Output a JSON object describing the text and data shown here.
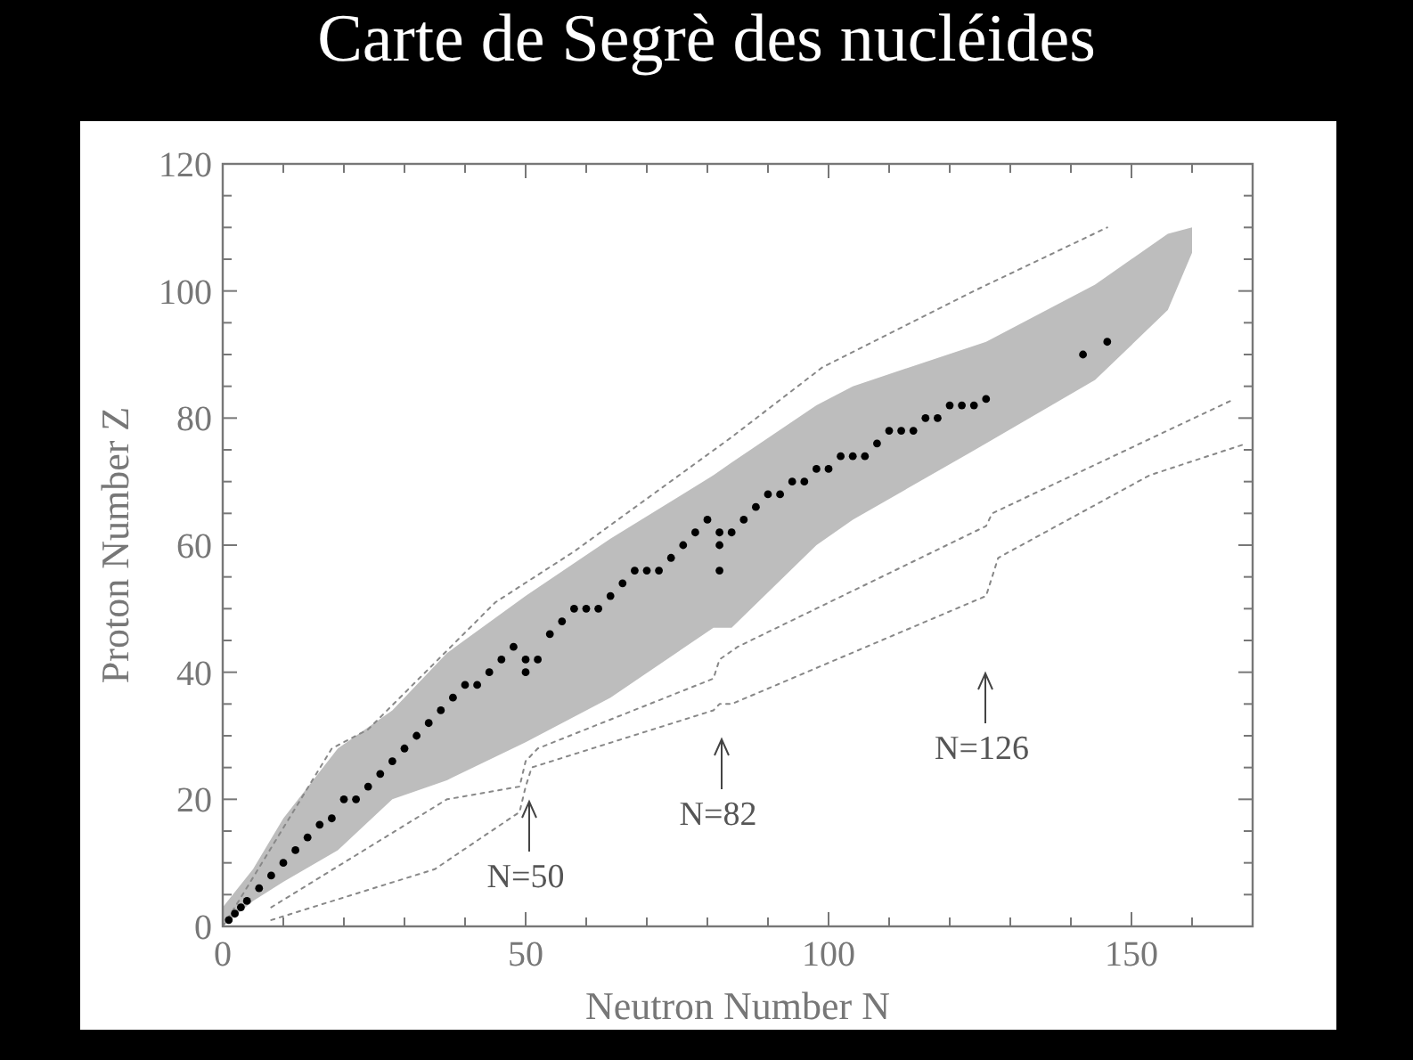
{
  "chart_data": {
    "type": "scatter",
    "title": "Carte de Segrè des nucléides",
    "xlabel": "Neutron Number N",
    "ylabel": "Proton Number Z",
    "xlim": [
      0,
      170
    ],
    "ylim": [
      0,
      120
    ],
    "xticks": [
      0,
      {
        "value": 10,
        "label": null
      },
      {
        "value": 20,
        "label": null
      },
      {
        "value": 30,
        "label": null
      },
      {
        "value": 40,
        "label": null
      },
      50,
      {
        "value": 60,
        "label": null
      },
      {
        "value": 70,
        "label": null
      },
      {
        "value": 80,
        "label": null
      },
      {
        "value": 90,
        "label": null
      },
      100,
      {
        "value": 110,
        "label": null
      },
      {
        "value": 120,
        "label": null
      },
      {
        "value": 130,
        "label": null
      },
      {
        "value": 140,
        "label": null
      },
      150,
      {
        "value": 160,
        "label": null
      }
    ],
    "yticks": [
      0,
      {
        "value": 5,
        "label": null
      },
      {
        "value": 10,
        "label": null
      },
      {
        "value": 15,
        "label": null
      },
      20,
      {
        "value": 25,
        "label": null
      },
      {
        "value": 30,
        "label": null
      },
      {
        "value": 35,
        "label": null
      },
      40,
      {
        "value": 45,
        "label": null
      },
      {
        "value": 50,
        "label": null
      },
      {
        "value": 55,
        "label": null
      },
      60,
      {
        "value": 65,
        "label": null
      },
      {
        "value": 70,
        "label": null
      },
      {
        "value": 75,
        "label": null
      },
      80,
      {
        "value": 85,
        "label": null
      },
      {
        "value": 90,
        "label": null
      },
      {
        "value": 95,
        "label": null
      },
      100,
      {
        "value": 105,
        "label": null
      },
      {
        "value": 110,
        "label": null
      },
      {
        "value": 115,
        "label": null
      },
      120
    ],
    "grid": false,
    "series": [
      {
        "type": "area",
        "color": "#bdbdbd",
        "x": [
          0,
          5,
          10,
          19,
          28,
          37,
          50,
          64,
          81,
          84,
          98,
          104,
          126,
          144,
          156,
          160
        ],
        "values": [
          3,
          9,
          17,
          28,
          34,
          43,
          52,
          61,
          71,
          73,
          82,
          85,
          92,
          101,
          109,
          110
        ]
      },
      {
        "type": "area",
        "color": "#ffffff",
        "x": [
          0,
          5,
          10,
          19,
          28,
          37,
          50,
          64,
          81,
          84,
          98,
          104,
          126,
          144,
          156,
          160
        ],
        "values": [
          0,
          4,
          7,
          12,
          20,
          23,
          29,
          36,
          47,
          47,
          60,
          64,
          76,
          86,
          97,
          106
        ]
      },
      {
        "type": "line",
        "color": "#888888",
        "line_style": "dotted",
        "marker": "none",
        "x": [
          0,
          2,
          18,
          24,
          45,
          58,
          84,
          99,
          124,
          146
        ],
        "values": [
          0,
          3,
          28,
          31,
          51,
          59,
          77,
          88,
          100,
          110
        ]
      },
      {
        "type": "line",
        "color": "#888888",
        "line_style": "dotted",
        "marker": "none",
        "x": [
          8,
          37,
          49,
          50,
          52,
          81,
          82,
          85,
          126,
          127,
          167
        ],
        "values": [
          3,
          20,
          22,
          26,
          28,
          39,
          42,
          44,
          63,
          65,
          83
        ]
      },
      {
        "type": "line",
        "color": "#888888",
        "line_style": "dotted",
        "marker": "none",
        "x": [
          8,
          35,
          49,
          50,
          51,
          81,
          82,
          84,
          126,
          128,
          153,
          169
        ],
        "values": [
          1,
          9,
          18,
          22,
          25,
          34,
          35,
          35,
          52,
          58,
          71,
          76
        ]
      },
      {
        "color": "#000000",
        "marker": "circle",
        "x": [
          1,
          2,
          3,
          4,
          6,
          8,
          10,
          12,
          14,
          16,
          18,
          20,
          22,
          24,
          26,
          28,
          30,
          32,
          34,
          36,
          38,
          40,
          42,
          44,
          46,
          48,
          50,
          50,
          52,
          54,
          56,
          58,
          60,
          62,
          64,
          66,
          68,
          70,
          72,
          74,
          76,
          78,
          80,
          82,
          82,
          82,
          84,
          86,
          88,
          90,
          92,
          94,
          96,
          98,
          100,
          102,
          104,
          106,
          108,
          110,
          112,
          114,
          116,
          118,
          120,
          122,
          124,
          126,
          142,
          146
        ],
        "values": [
          1,
          2,
          3,
          4,
          6,
          8,
          10,
          12,
          14,
          16,
          17,
          20,
          20,
          22,
          24,
          26,
          28,
          30,
          32,
          34,
          36,
          38,
          38,
          40,
          42,
          44,
          40,
          42,
          42,
          46,
          48,
          50,
          50,
          50,
          52,
          54,
          56,
          56,
          56,
          58,
          60,
          62,
          64,
          56,
          60,
          62,
          62,
          64,
          66,
          68,
          68,
          70,
          70,
          72,
          72,
          74,
          74,
          74,
          76,
          78,
          78,
          78,
          80,
          80,
          82,
          82,
          82,
          83,
          90,
          92
        ]
      }
    ],
    "annotations": [
      "N=50",
      "N=82",
      "N=126"
    ]
  }
}
